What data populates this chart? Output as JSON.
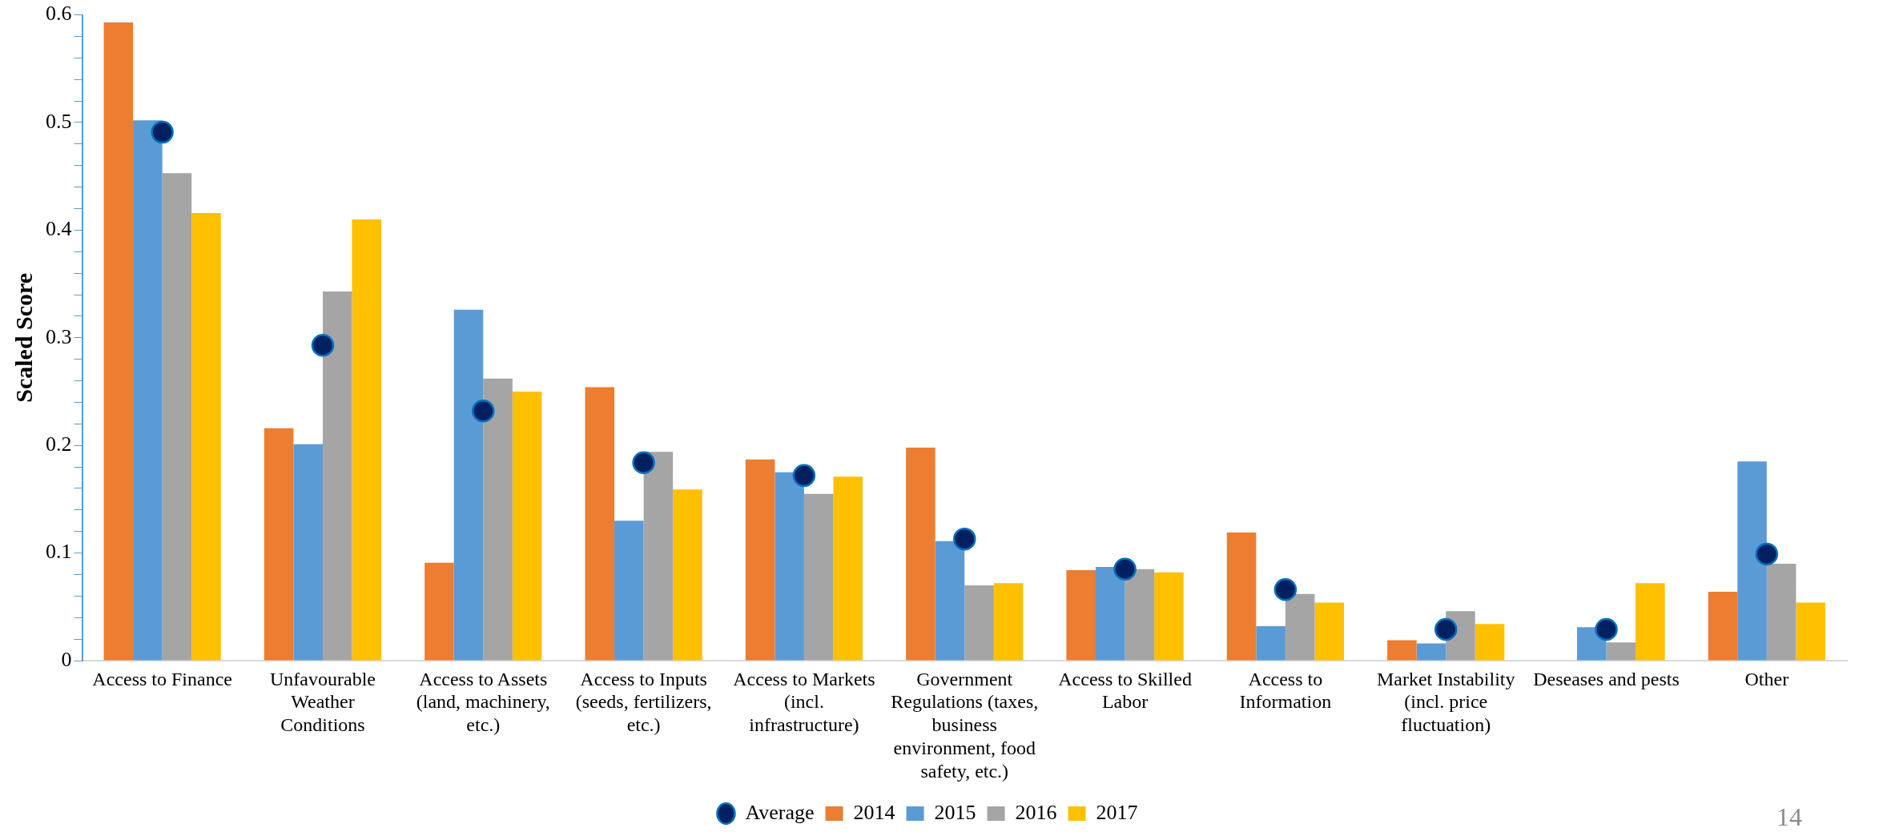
{
  "chart_data": {
    "type": "bar",
    "ylabel": "Scaled Score",
    "categories": [
      "Access to Finance",
      "Unfavourable Weather Conditions",
      "Access to Assets (land, machinery, etc.)",
      "Access to Inputs (seeds, fertilizers, etc.)",
      "Access to Markets (incl. infrastructure)",
      "Government Regulations (taxes, business environment, food safety, etc.)",
      "Access to Skilled Labor",
      "Access to Information",
      "Market Instability (incl. price fluctuation)",
      "Deseases and pests",
      "Other"
    ],
    "series": [
      {
        "name": "2014",
        "color": "#ed7d31",
        "values": [
          0.593,
          0.216,
          0.091,
          0.254,
          0.187,
          0.198,
          0.084,
          0.119,
          0.019,
          null,
          0.064
        ]
      },
      {
        "name": "2015",
        "color": "#5b9bd5",
        "values": [
          0.502,
          0.201,
          0.326,
          0.13,
          0.175,
          0.111,
          0.087,
          0.032,
          0.016,
          0.031,
          0.185
        ]
      },
      {
        "name": "2016",
        "color": "#a5a5a5",
        "values": [
          0.453,
          0.343,
          0.262,
          0.194,
          0.155,
          0.07,
          0.085,
          0.062,
          0.046,
          0.017,
          0.09
        ]
      },
      {
        "name": "2017",
        "color": "#ffc000",
        "values": [
          0.416,
          0.41,
          0.25,
          0.159,
          0.171,
          0.072,
          0.082,
          0.054,
          0.034,
          0.072,
          0.054
        ]
      },
      {
        "name": "Average",
        "type": "scatter",
        "color": "#002060",
        "marker": "circle",
        "x": [
          "Access to Finance",
          "Unfavourable Weather Conditions",
          "Access to Assets (land, machinery, etc.)",
          "Access to Inputs (seeds, fertilizers, etc.)",
          "Access to Markets (incl. infrastructure)",
          "Government Regulations (taxes, business environment, food safety, etc.)",
          "Access to Skilled Labor",
          "Access to Information",
          "Market Instability (incl. price fluctuation)",
          "Deseases and pests",
          "Other"
        ],
        "values": [
          0.491,
          0.293,
          0.232,
          0.184,
          0.172,
          0.113,
          0.085,
          0.066,
          0.029,
          0.029,
          0.099
        ]
      }
    ],
    "ylim": [
      0,
      0.6
    ],
    "yticks": [
      0,
      {
        "value": 0.02,
        "label": null
      },
      {
        "value": 0.04,
        "label": null
      },
      {
        "value": 0.06,
        "label": null
      },
      {
        "value": 0.08,
        "label": null
      },
      0.1,
      {
        "value": 0.12,
        "label": null
      },
      {
        "value": 0.14,
        "label": null
      },
      {
        "value": 0.16,
        "label": null
      },
      {
        "value": 0.18,
        "label": null
      },
      0.2,
      {
        "value": 0.22,
        "label": null
      },
      {
        "value": 0.24,
        "label": null
      },
      {
        "value": 0.26,
        "label": null
      },
      {
        "value": 0.28,
        "label": null
      },
      0.3,
      {
        "value": 0.32,
        "label": null
      },
      {
        "value": 0.34,
        "label": null
      },
      {
        "value": 0.36,
        "label": null
      },
      {
        "value": 0.38,
        "label": null
      },
      0.4,
      {
        "value": 0.42,
        "label": null
      },
      {
        "value": 0.44,
        "label": null
      },
      {
        "value": 0.46,
        "label": null
      },
      {
        "value": 0.48,
        "label": null
      },
      0.5,
      {
        "value": 0.52,
        "label": null
      },
      {
        "value": 0.54,
        "label": null
      },
      {
        "value": 0.56,
        "label": null
      },
      {
        "value": 0.58,
        "label": null
      },
      0.6
    ],
    "grid": false,
    "legend": "bottom",
    "annotations": [
      "14"
    ]
  }
}
